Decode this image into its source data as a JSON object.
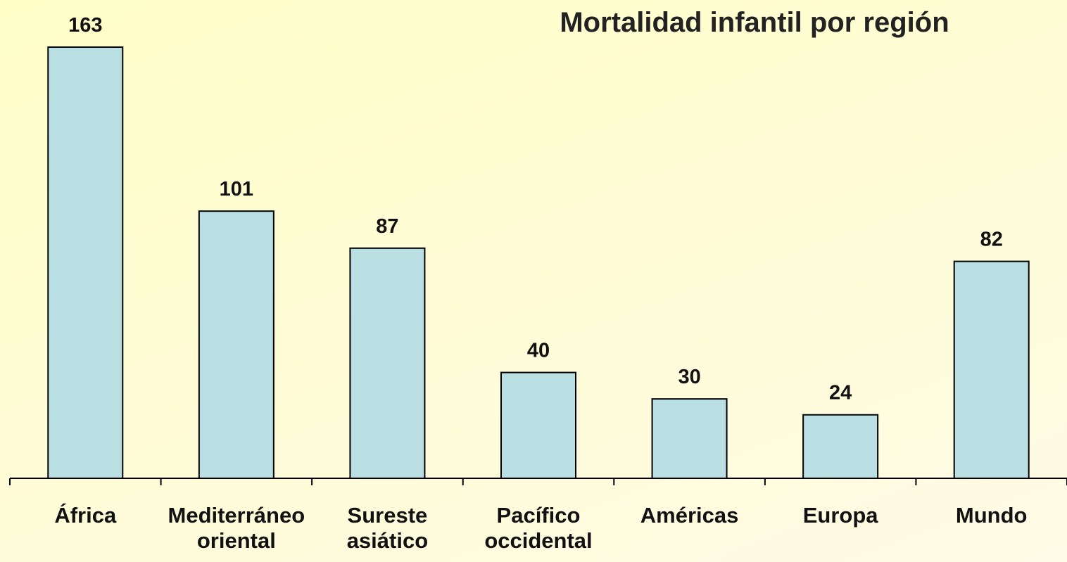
{
  "chart_data": {
    "type": "bar",
    "title": "Mortalidad infantil por región",
    "categories": [
      "África",
      "Mediterráneo oriental",
      "Sureste asiático",
      "Pacífico occidental",
      "Américas",
      "Europa",
      "Mundo"
    ],
    "values": [
      163,
      101,
      87,
      40,
      30,
      24,
      82
    ],
    "color": "#b9dfe3"
  }
}
